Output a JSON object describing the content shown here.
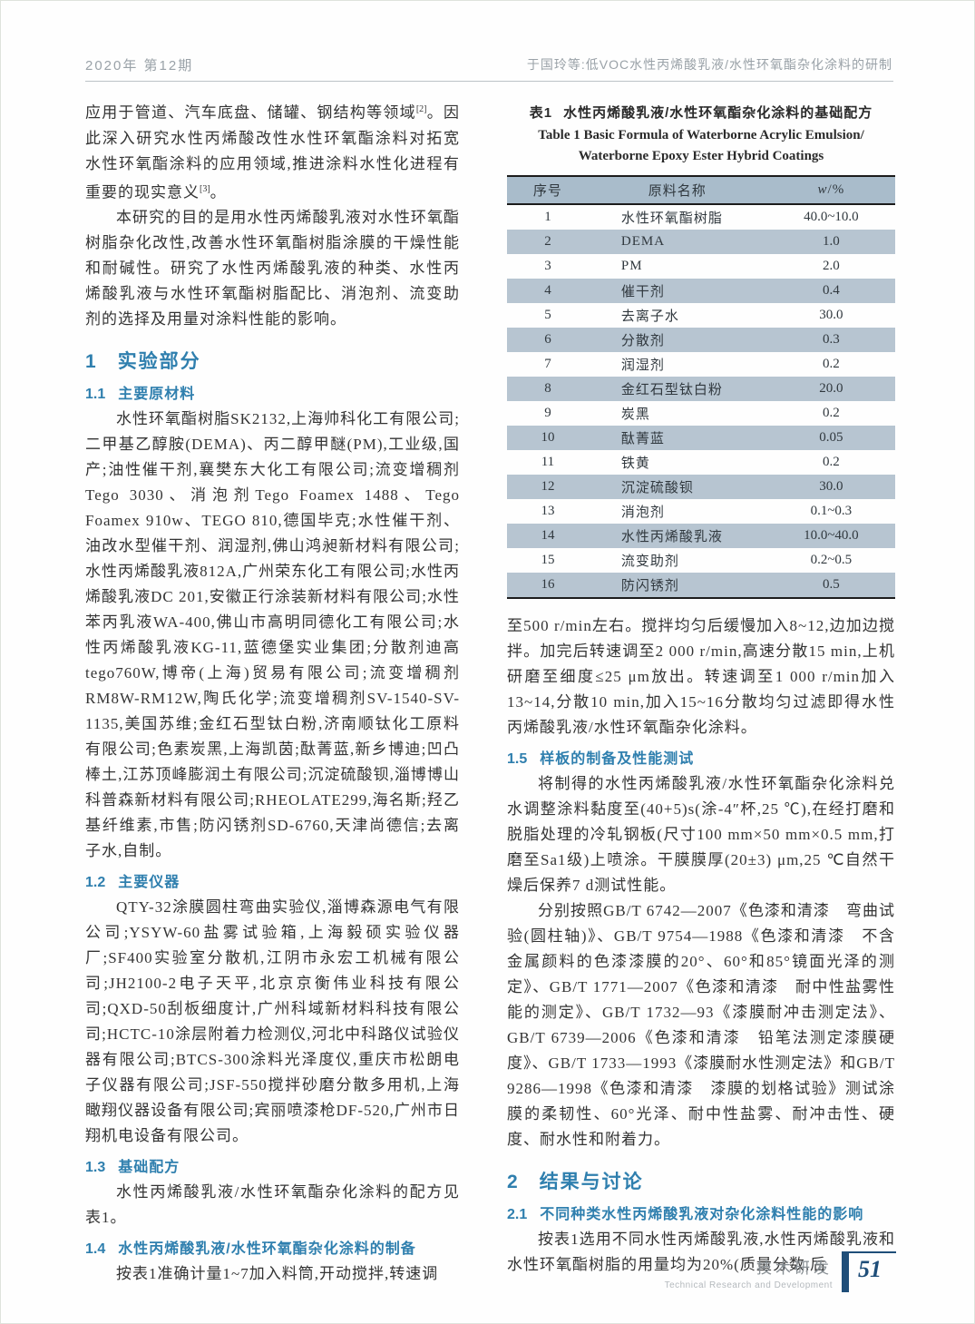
{
  "colors": {
    "heading_blue": "#2f7fae",
    "table_header_bg": "#a9bccb",
    "table_row_shade": "#b7c5d1",
    "footer_blue": "#1f4e79",
    "runhead_gray": "#9aa2a8"
  },
  "header": {
    "left": "2020年 第12期",
    "right": "于国玲等:低VOC水性丙烯酸乳液/水性环氧酯杂化涂料的研制"
  },
  "left_column": {
    "p1": {
      "t1": "应用于管道、汽车底盘、储罐、钢结构等领域",
      "sup1": "[2]",
      "t2": "。因此深入研究水性丙烯酸改性水性环氧酯涂料对拓宽水性环氧酯涂料的应用领域,推进涂料水性化进程有重要的现实意义",
      "sup2": "[3]",
      "t3": "。"
    },
    "p2": "本研究的目的是用水性丙烯酸乳液对水性环氧酯树脂杂化改性,改善水性环氧酯树脂涂膜的干燥性能和耐碱性。研究了水性丙烯酸乳液的种类、水性丙烯酸乳液与水性环氧酯树脂配比、消泡剂、流变助剂的选择及用量对涂料性能的影响。",
    "s1": {
      "num": "1",
      "title": "实验部分"
    },
    "s11": {
      "num": "1.1",
      "title": "主要原材料"
    },
    "p_materials": "水性环氧酯树脂SK2132,上海帅科化工有限公司;二甲基乙醇胺(DEMA)、丙二醇甲醚(PM),工业级,国产;油性催干剂,襄樊东大化工有限公司;流变增稠剂Tego 3030、消泡剂Tego Foamex 1488、Tego Foamex 910w、TEGO 810,德国毕克;水性催干剂、油改水型催干剂、润湿剂,佛山鸿昶新材料有限公司;水性丙烯酸乳液812A,广州荣东化工有限公司;水性丙烯酸乳液DC 201,安徽正行涂装新材料有限公司;水性苯丙乳液WA-400,佛山市高明同德化工有限公司;水性丙烯酸乳液KG-11,蓝德堡实业集团;分散剂迪高tego760W,博帝(上海)贸易有限公司;流变增稠剂RM8W-RM12W,陶氏化学;流变增稠剂SV-1540-SV-1135,美国苏维;金红石型钛白粉,济南顺钛化工原料有限公司;色素炭黑,上海凯茵;酞菁蓝,新乡博迪;凹凸棒土,江苏顶峰膨润土有限公司;沉淀硫酸钡,淄博博山科普森新材料有限公司;RHEOLATE299,海名斯;羟乙基纤维素,市售;防闪锈剂SD-6760,天津尚德信;去离子水,自制。",
    "s12": {
      "num": "1.2",
      "title": "主要仪器"
    },
    "p_instruments": "QTY-32涂膜圆柱弯曲实验仪,淄博森源电气有限公司;YSYW-60盐雾试验箱,上海毅硕实验仪器厂;SF400实验室分散机,江阴市永宏工机械有限公司;JH2100-2电子天平,北京京衡伟业科技有限公司;QXD-50刮板细度计,广州科域新材料科技有限公司;HCTC-10涂层附着力检测仪,河北中科路仪试验仪器有限公司;BTCS-300涂料光泽度仪,重庆市松朗电子仪器有限公司;JSF-550搅拌砂磨分散多用机,上海瞰翔仪器设备有限公司;宾丽喷漆枪DF-520,广州市日翔机电设备有限公司。",
    "s13": {
      "num": "1.3",
      "title": "基础配方"
    },
    "p_formula": "水性丙烯酸乳液/水性环氧酯杂化涂料的配方见表1。",
    "s14": {
      "num": "1.4",
      "title": "水性丙烯酸乳液/水性环氧酯杂化涂料的制备"
    },
    "p_prep": "按表1准确计量1~7加入料筒,开动搅拌,转速调"
  },
  "table": {
    "caption_zh_num": "表1",
    "caption_zh": "水性丙烯酸乳液/水性环氧酯杂化涂料的基础配方",
    "caption_en_line1": "Table 1  Basic Formula of Waterborne Acrylic Emulsion/",
    "caption_en_line2": "Waterborne Epoxy Ester Hybrid Coatings",
    "headers": {
      "c1": "序号",
      "c2": "原料名称",
      "c3w": "w",
      "c3rest": "/%"
    },
    "rows": [
      [
        "1",
        "水性环氧酯树脂",
        "40.0~10.0"
      ],
      [
        "2",
        "DEMA",
        "1.0"
      ],
      [
        "3",
        "PM",
        "2.0"
      ],
      [
        "4",
        "催干剂",
        "0.4"
      ],
      [
        "5",
        "去离子水",
        "30.0"
      ],
      [
        "6",
        "分散剂",
        "0.3"
      ],
      [
        "7",
        "润湿剂",
        "0.2"
      ],
      [
        "8",
        "金红石型钛白粉",
        "20.0"
      ],
      [
        "9",
        "炭黑",
        "0.2"
      ],
      [
        "10",
        "酞菁蓝",
        "0.05"
      ],
      [
        "11",
        "铁黄",
        "0.2"
      ],
      [
        "12",
        "沉淀硫酸钡",
        "30.0"
      ],
      [
        "13",
        "消泡剂",
        "0.1~0.3"
      ],
      [
        "14",
        "水性丙烯酸乳液",
        "10.0~40.0"
      ],
      [
        "15",
        "流变助剂",
        "0.2~0.5"
      ],
      [
        "16",
        "防闪锈剂",
        "0.5"
      ]
    ]
  },
  "right_column": {
    "p_cont": "至500 r/min左右。搅拌均匀后缓慢加入8~12,边加边搅拌。加完后转速调至2 000 r/min,高速分散15 min,上机研磨至细度≤25 μm放出。转速调至1 000 r/min加入13~14,分散10 min,加入15~16分散均匀过滤即得水性丙烯酸乳液/水性环氧酯杂化涂料。",
    "s15": {
      "num": "1.5",
      "title": "样板的制备及性能测试"
    },
    "p_sample": "将制得的水性丙烯酸乳液/水性环氧酯杂化涂料兑水调整涂料黏度至(40+5)s(涂-4″杯,25 ℃),在经打磨和脱脂处理的冷轧钢板(尺寸100 mm×50 mm×0.5 mm,打磨至Sa1级)上喷涂。干膜膜厚(20±3) μm,25 ℃自然干燥后保养7 d测试性能。",
    "p_standards": "分别按照GB/T 6742—2007《色漆和清漆　弯曲试验(圆柱轴)》、GB/T 9754—1988《色漆和清漆　不含金属颜料的色漆漆膜的20°、60°和85°镜面光泽的测定》、GB/T 1771—2007《色漆和清漆　耐中性盐雾性能的测定》、GB/T 1732—93《漆膜耐冲击测定法》、GB/T 6739—2006《色漆和清漆　铅笔法测定漆膜硬度》、GB/T 1733—1993《漆膜耐水性测定法》和GB/T 9286—1998《色漆和清漆　漆膜的划格试验》测试涂膜的柔韧性、60°光泽、耐中性盐雾、耐冲击性、硬度、耐水性和附着力。",
    "s2": {
      "num": "2",
      "title": "结果与讨论"
    },
    "s21": {
      "num": "2.1",
      "title": "不同种类水性丙烯酸乳液对杂化涂料性能的影响"
    },
    "p_discussion": "按表1选用不同水性丙烯酸乳液,水性丙烯酸乳液和水性环氧酯树脂的用量均为20%(质量分数,后"
  },
  "footer": {
    "zh": "技术研发",
    "en": "Technical Research and Development",
    "page": "51"
  }
}
